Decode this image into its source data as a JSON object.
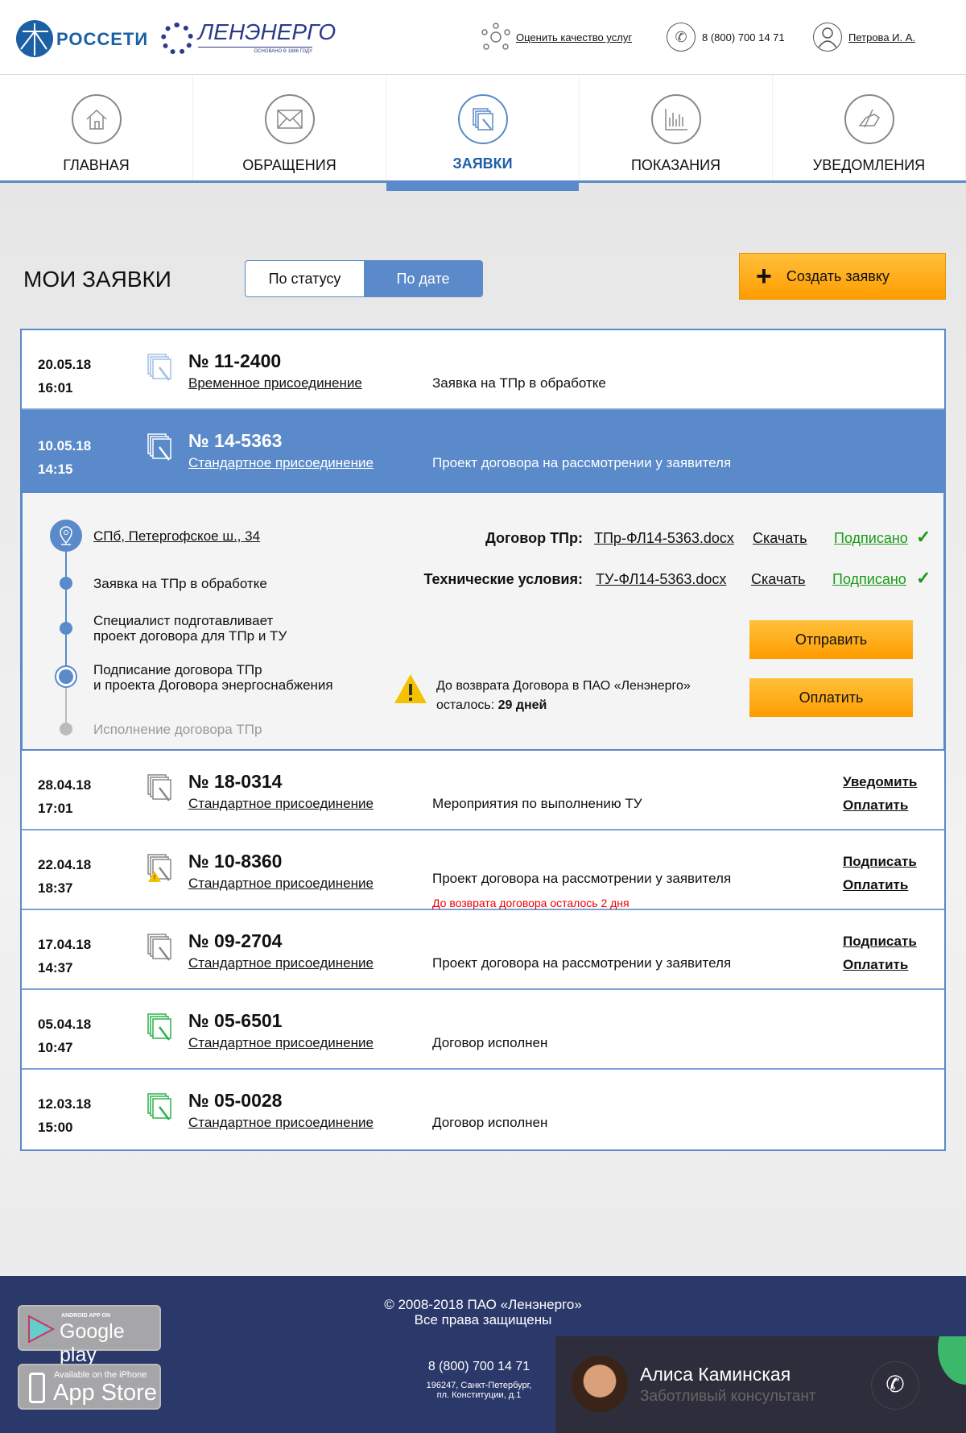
{
  "header": {
    "logo_rosseti": "РОССЕТИ",
    "logo_lenenergo": "ЛЕНЭНЕРГО",
    "logo_lenenergo_sub": "ОСНОВАНО В 1886 ГОДУ",
    "rate_link": "Оценить качество услуг",
    "phone": "8 (800) 700 14 71",
    "user": "Петрова И. А."
  },
  "nav": [
    {
      "label": "ГЛАВНАЯ",
      "icon": "home-icon"
    },
    {
      "label": "ОБРАЩЕНИЯ",
      "icon": "envelope-icon"
    },
    {
      "label": "ЗАЯВКИ",
      "icon": "documents-icon",
      "active": true
    },
    {
      "label": "ПОКАЗАНИЯ",
      "icon": "bar-chart-icon"
    },
    {
      "label": "УВЕДОМЛЕНИЯ",
      "icon": "hand-pen-icon"
    }
  ],
  "page": {
    "title": "МОИ ЗАЯВКИ",
    "sort_status": "По статусу",
    "sort_date": "По дате",
    "sort_active": "По дате",
    "create_label": "Создать заявку"
  },
  "colors": {
    "accent": "#5a8ac9",
    "orange": "#ff9c00",
    "green": "#1a9a1a",
    "footer": "#2b386a"
  },
  "requests": [
    {
      "date": "20.05.18",
      "time": "16:01",
      "number": "№ 11-2400",
      "type": "Временное присоединение",
      "status": "Заявка на ТПр в обработке",
      "icon_state": "light"
    },
    {
      "date": "10.05.18",
      "time": "14:15",
      "number": "№ 14-5363",
      "type": "Стандартное присоединение",
      "status": "Проект договора на рассмотрении у заявителя",
      "selected": true
    },
    {
      "date": "28.04.18",
      "time": "17:01",
      "number": "№ 18-0314",
      "type": "Стандартное присоединение",
      "status": "Мероприятия по выполнению ТУ",
      "actions": [
        "Уведомить",
        "Оплатить"
      ],
      "icon_state": "grey"
    },
    {
      "date": "22.04.18",
      "time": "18:37",
      "number": "№ 10-8360",
      "type": "Стандартное присоединение",
      "status": "Проект договора на рассмотрении у заявителя",
      "warning": "До возврата договора осталось 2 дня",
      "actions": [
        "Подписать",
        "Оплатить"
      ],
      "icon_state": "warning"
    },
    {
      "date": "17.04.18",
      "time": "14:37",
      "number": "№ 09-2704",
      "type": "Стандартное присоединение",
      "status": "Проект договора на рассмотрении у заявителя",
      "actions": [
        "Подписать",
        "Оплатить"
      ],
      "icon_state": "grey"
    },
    {
      "date": "05.04.18",
      "time": "10:47",
      "number": "№ 05-6501",
      "type": "Стандартное присоединение",
      "status": "Договор исполнен",
      "icon_state": "green"
    },
    {
      "date": "12.03.18",
      "time": "15:00",
      "number": "№ 05-0028",
      "type": "Стандартное присоединение",
      "status": "Договор исполнен",
      "icon_state": "green"
    }
  ],
  "detail": {
    "address": "СПб, Петергофское ш., 34",
    "steps": [
      "Заявка на ТПр в обработке",
      "Специалист подготавливает\nпроект договора для ТПр и ТУ",
      "Подписание договора ТПр\nи проекта Договора энергоснабжения",
      "Исполнение договора ТПр"
    ],
    "docs": [
      {
        "label": "Договор ТПр:",
        "file": "ТПр-ФЛ14-5363.docx",
        "download": "Скачать",
        "status": "Подписано"
      },
      {
        "label": "Технические условия:",
        "file": "ТУ-ФЛ14-5363.docx",
        "download": "Скачать",
        "status": "Подписано"
      }
    ],
    "warning_text": "До возврата Договора в ПАО «Ленэнерго»",
    "warning_remaining_label": "осталось:",
    "warning_remaining": "29 дней",
    "send_label": "Отправить",
    "pay_label": "Оплатить"
  },
  "footer": {
    "copyright": "© 2008-2018 ПАО «Ленэнерго»",
    "rights": "Все права защищены",
    "phone": "8 (800) 700 14 71",
    "address1": "196247, Санкт-Петербург,",
    "address2": "пл. Конституции, д.1",
    "google_small": "ANDROID APP ON",
    "google_big": "Google play",
    "apple_small": "Available on the iPhone",
    "apple_big": "App Store",
    "consultant_name": "Алиса Каминская",
    "consultant_role": "Заботливый консультант"
  }
}
